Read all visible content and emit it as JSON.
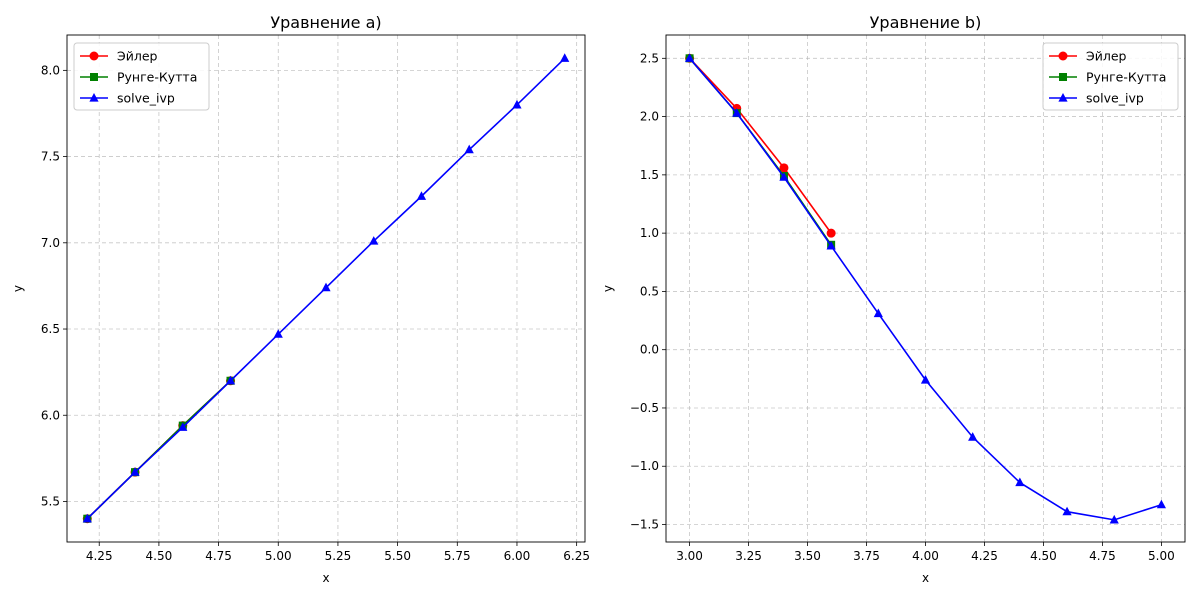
{
  "chart_data": [
    {
      "type": "line",
      "title": "Уравнение a)",
      "xlabel": "x",
      "ylabel": "y",
      "xlim": [
        4.115,
        6.285
      ],
      "ylim": [
        5.265,
        8.205
      ],
      "xticks": [
        "4.25",
        "4.50",
        "4.75",
        "5.00",
        "5.25",
        "5.50",
        "5.75",
        "6.00",
        "6.25"
      ],
      "yticks": [
        "5.5",
        "6.0",
        "6.5",
        "7.0",
        "7.5",
        "8.0"
      ],
      "grid": true,
      "legend_position": "top-left",
      "series": [
        {
          "name": "Эйлер",
          "color": "#ff0000",
          "marker": "circle",
          "x": [
            4.2,
            4.4,
            4.6,
            4.8
          ],
          "y": [
            5.4,
            5.67,
            5.94,
            6.2
          ]
        },
        {
          "name": "Рунге-Кутта",
          "color": "#008000",
          "marker": "square",
          "x": [
            4.2,
            4.4,
            4.6,
            4.8
          ],
          "y": [
            5.4,
            5.67,
            5.94,
            6.2
          ]
        },
        {
          "name": "solve_ivp",
          "color": "#0000ff",
          "marker": "triangle",
          "x": [
            4.2,
            4.4,
            4.6,
            4.8,
            5.0,
            5.2,
            5.4,
            5.6,
            5.8,
            6.0,
            6.2
          ],
          "y": [
            5.4,
            5.67,
            5.93,
            6.2,
            6.47,
            6.74,
            7.01,
            7.27,
            7.54,
            7.8,
            8.07
          ]
        }
      ]
    },
    {
      "type": "line",
      "title": "Уравнение b)",
      "xlabel": "x",
      "ylabel": "y",
      "xlim": [
        2.9,
        5.1
      ],
      "ylim": [
        -1.65,
        2.7
      ],
      "xticks": [
        "3.00",
        "3.25",
        "3.50",
        "3.75",
        "4.00",
        "4.25",
        "4.50",
        "4.75",
        "5.00"
      ],
      "yticks": [
        "2.5",
        "2.0",
        "1.5",
        "1.0",
        "0.5",
        "0.0",
        "−0.5",
        "−1.0",
        "−1.5"
      ],
      "grid": true,
      "legend_position": "top-right",
      "series": [
        {
          "name": "Эйлер",
          "color": "#ff0000",
          "marker": "circle",
          "x": [
            3.0,
            3.2,
            3.4,
            3.6
          ],
          "y": [
            2.5,
            2.07,
            1.56,
            1.0
          ]
        },
        {
          "name": "Рунге-Кутта",
          "color": "#008000",
          "marker": "square",
          "x": [
            3.0,
            3.2,
            3.4,
            3.6
          ],
          "y": [
            2.5,
            2.03,
            1.49,
            0.9
          ]
        },
        {
          "name": "solve_ivp",
          "color": "#0000ff",
          "marker": "triangle",
          "x": [
            3.0,
            3.2,
            3.4,
            3.6,
            3.8,
            4.0,
            4.2,
            4.4,
            4.6,
            4.8,
            5.0
          ],
          "y": [
            2.5,
            2.03,
            1.48,
            0.89,
            0.31,
            -0.26,
            -0.75,
            -1.14,
            -1.39,
            -1.46,
            -1.33
          ]
        }
      ]
    }
  ]
}
